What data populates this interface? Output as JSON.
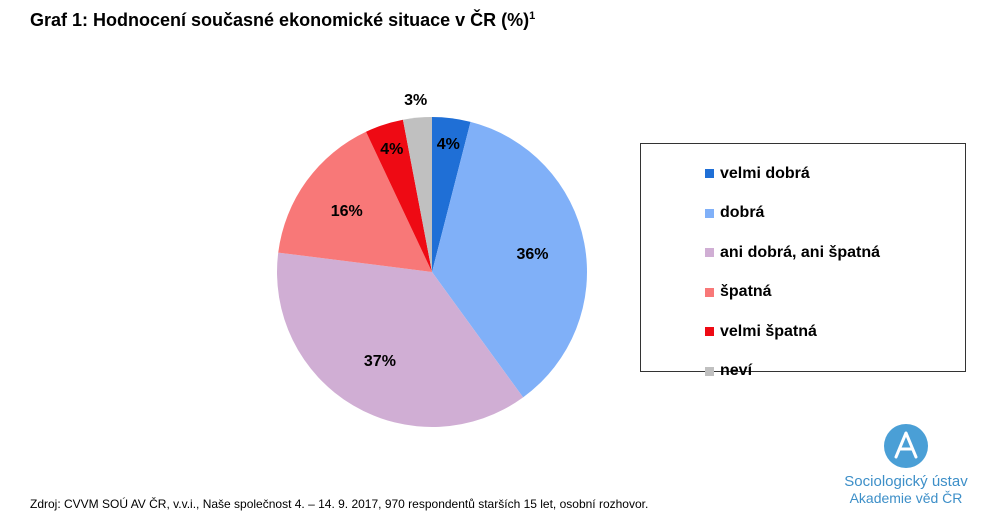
{
  "title": {
    "text": "Graf 1: Hodnocení současné ekonomické situace v ČR (%)",
    "footnote_mark": "1"
  },
  "chart_data": {
    "type": "pie",
    "title": "Graf 1: Hodnocení současné ekonomické situace v ČR (%)",
    "unit": "%",
    "slices": [
      {
        "name": "velmi dobrá",
        "value": 4,
        "label": "4%",
        "color": "#1f6fd6"
      },
      {
        "name": "dobrá",
        "value": 36,
        "label": "36%",
        "color": "#80b0f8"
      },
      {
        "name": "ani dobrá, ani špatná",
        "value": 37,
        "label": "37%",
        "color": "#d0aed4"
      },
      {
        "name": "špatná",
        "value": 16,
        "label": "16%",
        "color": "#f87878"
      },
      {
        "name": "velmi špatná",
        "value": 4,
        "label": "4%",
        "color": "#ee0a14"
      },
      {
        "name": "neví",
        "value": 3,
        "label": "3%",
        "color": "#c0c0c0"
      }
    ],
    "start": "12 o'clock",
    "direction": "clockwise",
    "legend_position": "right"
  },
  "source": "Zdroj: CVVM SOÚ AV ČR, v.v.i., Naše společnost 4. – 14. 9. 2017, 970 respondentů starších 15 let, osobní rozhovor.",
  "logo": {
    "line1": "Sociologický ústav",
    "line2": "Akademie věd ČR",
    "icon": "institute-a-logo-icon",
    "color": "#3d8fc8"
  }
}
